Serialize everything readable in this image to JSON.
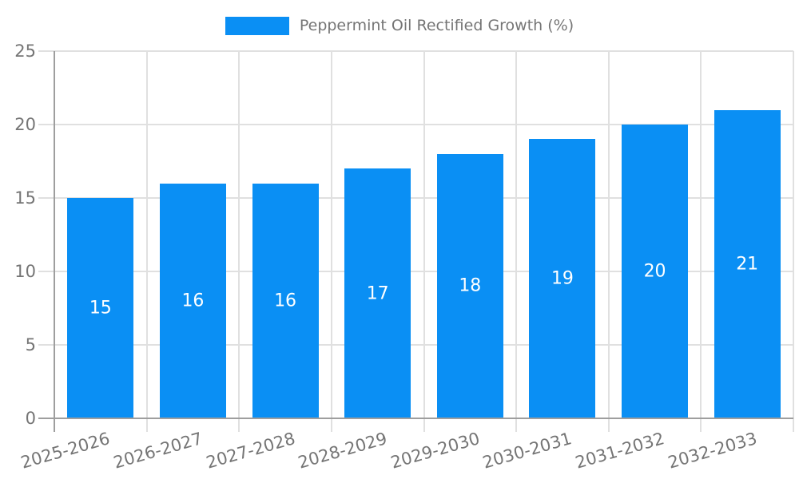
{
  "chart_data": {
    "type": "bar",
    "title": "",
    "legend": "Peppermint Oil Rectified Growth (%)",
    "legend_position": "top-center",
    "categories": [
      "2025-2026",
      "2026-2027",
      "2027-2028",
      "2028-2029",
      "2029-2030",
      "2030-2031",
      "2031-2032",
      "2032-2033"
    ],
    "values": [
      15,
      16,
      16,
      17,
      18,
      19,
      20,
      21
    ],
    "bar_value_labels": [
      "15",
      "16",
      "16",
      "17",
      "18",
      "19",
      "20",
      "21"
    ],
    "xlabel": "",
    "ylabel": "",
    "ylim": [
      0,
      25
    ],
    "yticks": [
      0,
      5,
      10,
      15,
      20,
      25
    ],
    "grid": true,
    "x_tick_rotation_deg": -16,
    "colors": {
      "bar": "#0A8FF4",
      "bar_value_text": "#FFFFFF",
      "grid_line": "#E0E0E0",
      "axis_line": "#9E9E9E",
      "tick_text": "#757575",
      "legend_text": "#757575",
      "background": "#FFFFFF"
    }
  }
}
